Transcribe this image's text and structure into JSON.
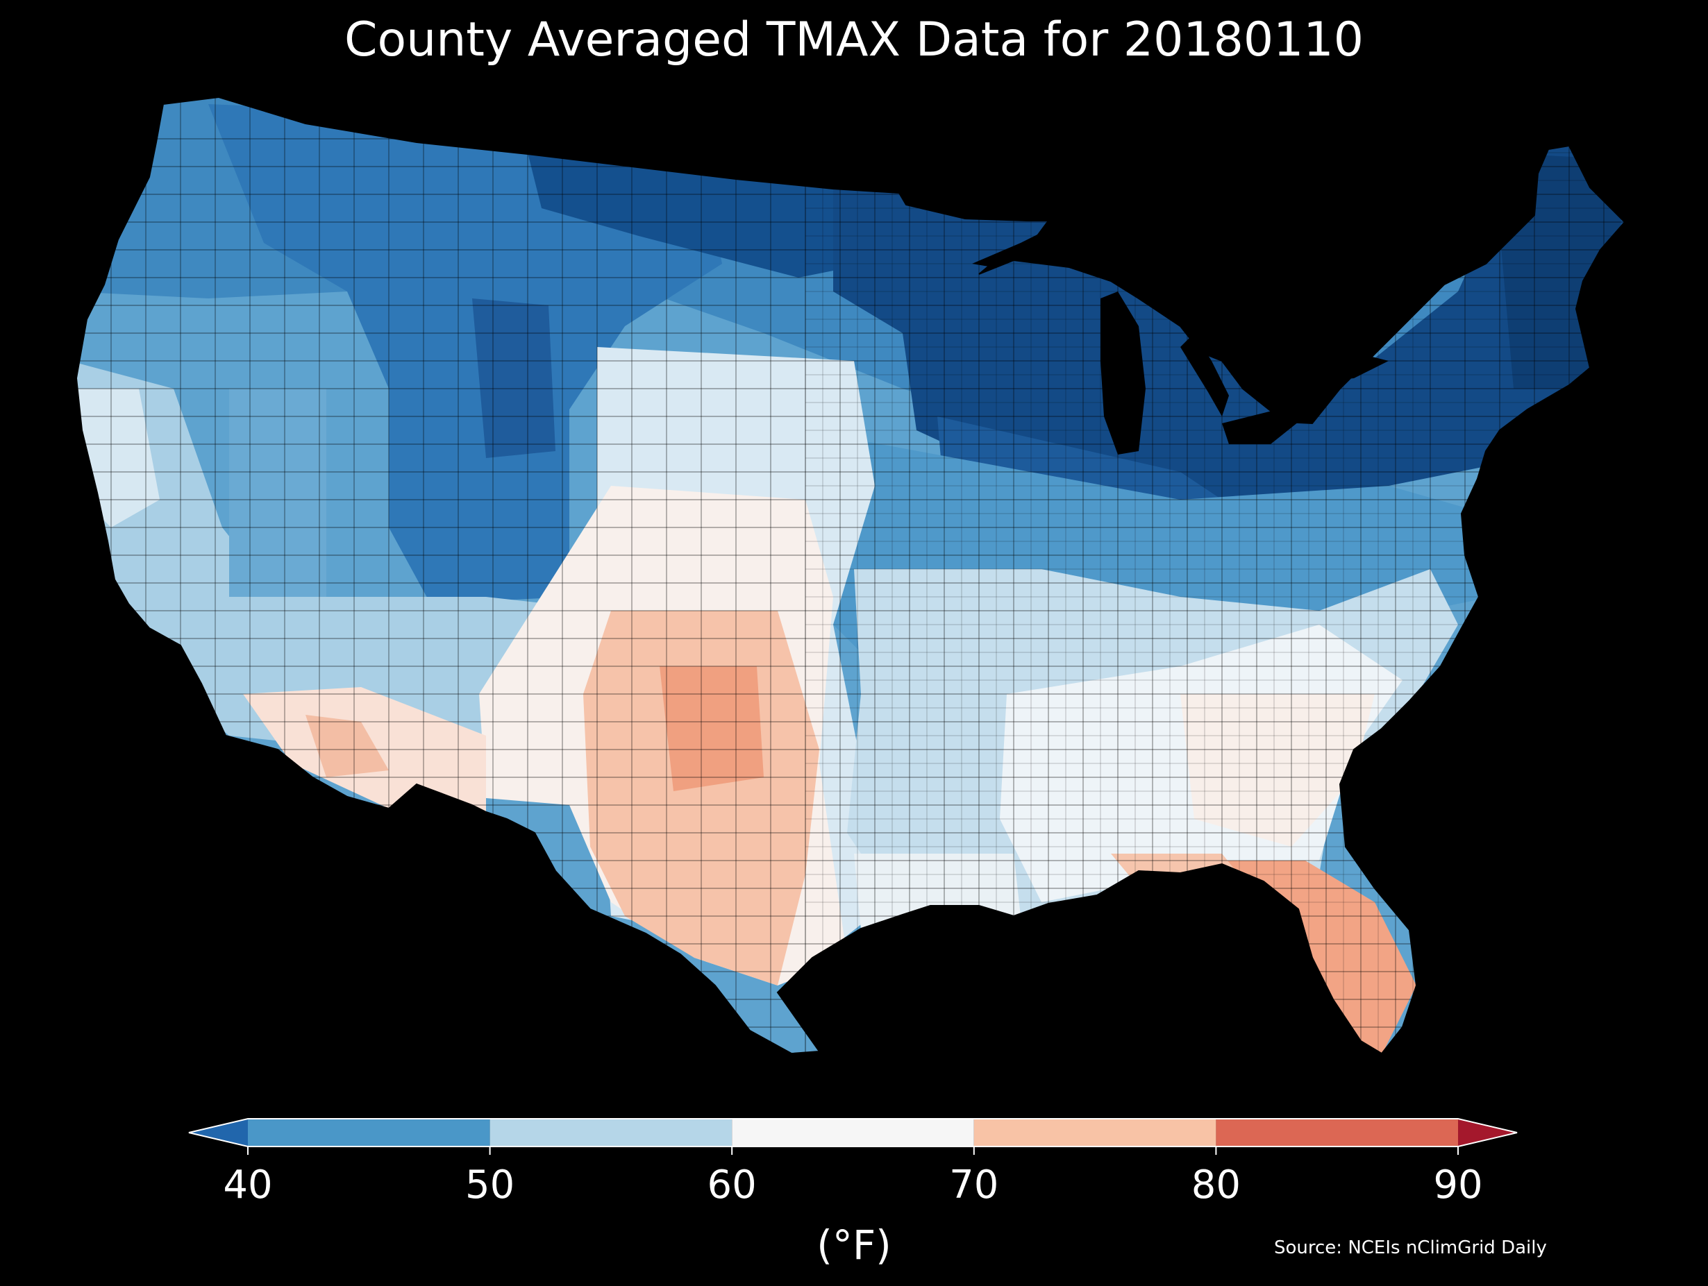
{
  "title": "County Averaged TMAX Data for 20180110",
  "colorbar": {
    "unit_label": "(°F)",
    "ticks": [
      "40",
      "50",
      "60",
      "70",
      "80",
      "90"
    ],
    "bins": [
      {
        "from": 40,
        "to": 50,
        "color": "#4a97c8"
      },
      {
        "from": 50,
        "to": 60,
        "color": "#b5d6e8"
      },
      {
        "from": 60,
        "to": 70,
        "color": "#f6f6f6"
      },
      {
        "from": 70,
        "to": 80,
        "color": "#f8c3a6"
      },
      {
        "from": 80,
        "to": 90,
        "color": "#dc6754"
      }
    ],
    "under_color": "#2166ac",
    "over_color": "#a4182c"
  },
  "source": "Source: NCEIs nClimGrid Daily",
  "map": {
    "variable": "TMAX",
    "date": "20180110",
    "region": "Contiguous United States",
    "regional_pattern": [
      {
        "region": "Upper Midwest / Northeast",
        "color": "#11457f"
      },
      {
        "region": "Northern Rockies / Great Basin",
        "color": "#2c74b5"
      },
      {
        "region": "Pacific Northwest",
        "color": "#4a97c8"
      },
      {
        "region": "Central Plains / Midwest",
        "color": "#5ea3cf"
      },
      {
        "region": "California / Southwest",
        "color": "#b5d6e8"
      },
      {
        "region": "Gulf Coast / Southeast",
        "color": "#f3f7f9"
      },
      {
        "region": "Texas / Florida",
        "color": "#f5b39a"
      }
    ]
  }
}
